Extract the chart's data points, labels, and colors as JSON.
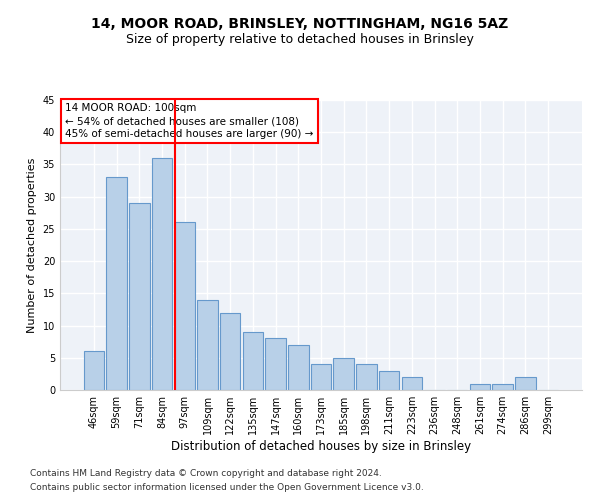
{
  "title1": "14, MOOR ROAD, BRINSLEY, NOTTINGHAM, NG16 5AZ",
  "title2": "Size of property relative to detached houses in Brinsley",
  "xlabel": "Distribution of detached houses by size in Brinsley",
  "ylabel": "Number of detached properties",
  "categories": [
    "46sqm",
    "59sqm",
    "71sqm",
    "84sqm",
    "97sqm",
    "109sqm",
    "122sqm",
    "135sqm",
    "147sqm",
    "160sqm",
    "173sqm",
    "185sqm",
    "198sqm",
    "211sqm",
    "223sqm",
    "236sqm",
    "248sqm",
    "261sqm",
    "274sqm",
    "286sqm",
    "299sqm"
  ],
  "values": [
    6,
    33,
    29,
    36,
    26,
    14,
    12,
    9,
    8,
    7,
    4,
    5,
    4,
    3,
    2,
    0,
    0,
    1,
    1,
    2,
    0
  ],
  "bar_color": "#b8d0e8",
  "bar_edge_color": "#6699cc",
  "red_line_index": 4,
  "annotation_text": "14 MOOR ROAD: 100sqm\n← 54% of detached houses are smaller (108)\n45% of semi-detached houses are larger (90) →",
  "annotation_box_color": "white",
  "annotation_box_edge_color": "red",
  "ylim": [
    0,
    45
  ],
  "yticks": [
    0,
    5,
    10,
    15,
    20,
    25,
    30,
    35,
    40,
    45
  ],
  "footer1": "Contains HM Land Registry data © Crown copyright and database right 2024.",
  "footer2": "Contains public sector information licensed under the Open Government Licence v3.0.",
  "background_color": "#eef2f8",
  "grid_color": "white",
  "title1_fontsize": 10,
  "title2_fontsize": 9,
  "xlabel_fontsize": 8.5,
  "ylabel_fontsize": 8,
  "annotation_fontsize": 7.5,
  "footer_fontsize": 6.5,
  "tick_fontsize": 7
}
